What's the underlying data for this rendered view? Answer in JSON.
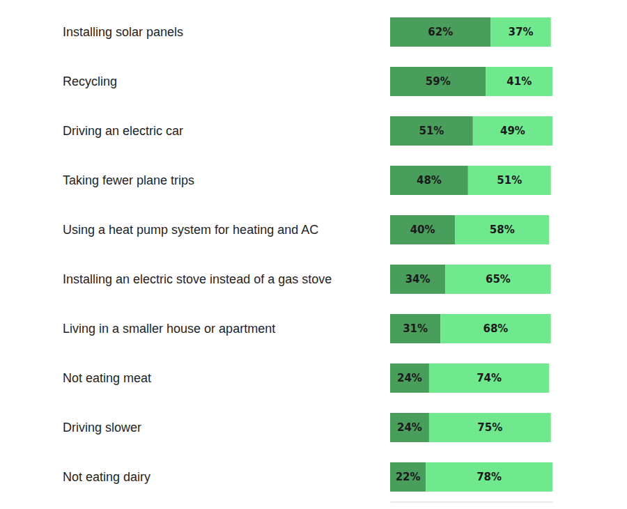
{
  "chart_data": {
    "type": "bar",
    "orientation": "horizontal",
    "stacked": true,
    "data_labels": true,
    "tick_labels": false,
    "categories": [
      "Installing solar panels",
      "Recycling",
      "Driving an electric car",
      "Taking fewer plane trips",
      "Using a heat pump system for heating and AC",
      "Installing an electric stove instead of a gas stove",
      "Living in a smaller house or apartment",
      "Not eating meat",
      "Driving slower",
      "Not eating dairy"
    ],
    "series": [
      {
        "color": "#4a9e5c",
        "values": [
          62,
          59,
          51,
          48,
          40,
          34,
          31,
          24,
          24,
          22
        ],
        "value_labels": [
          "62%",
          "59%",
          "51%",
          "48%",
          "40%",
          "34%",
          "31%",
          "24%",
          "24%",
          "22%"
        ]
      },
      {
        "color": "#70e98e",
        "values": [
          37,
          41,
          49,
          51,
          58,
          65,
          68,
          74,
          75,
          78
        ],
        "value_labels": [
          "37%",
          "41%",
          "49%",
          "51%",
          "58%",
          "65%",
          "68%",
          "74%",
          "75%",
          "78%"
        ]
      }
    ],
    "xlim": [
      0,
      100
    ],
    "xticks": []
  }
}
